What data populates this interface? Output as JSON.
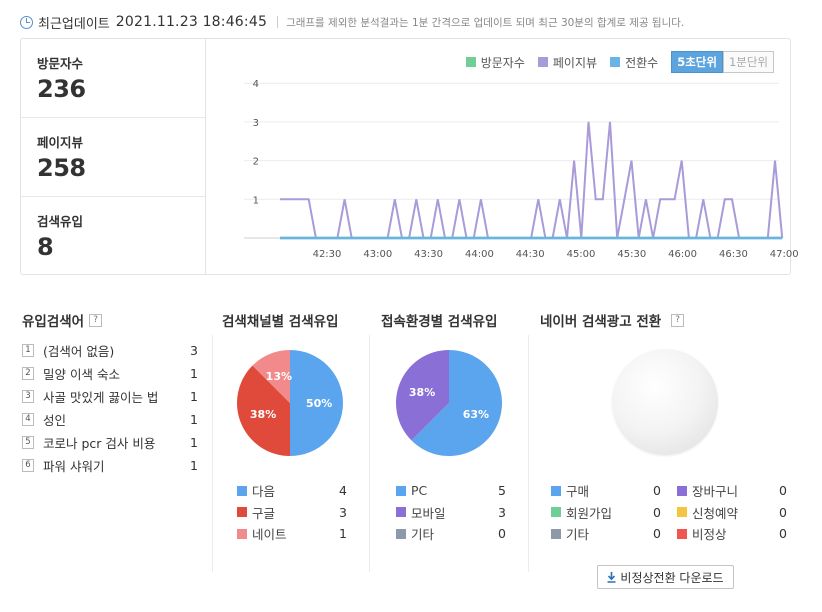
{
  "header": {
    "label": "최근업데이트",
    "datetime": "2021.11.23 18:46:45",
    "note": "그래프를 제외한 분석결과는 1분 간격으로 업데이트 되며 최근 30분의 합계로 제공 됩니다."
  },
  "stats": [
    {
      "label": "방문자수",
      "value": "236"
    },
    {
      "label": "페이지뷰",
      "value": "258"
    },
    {
      "label": "검색유입",
      "value": "8"
    }
  ],
  "legend": [
    {
      "label": "방문자수",
      "color": "#6fcf97"
    },
    {
      "label": "페이지뷰",
      "color": "#a99ad9"
    },
    {
      "label": "전환수",
      "color": "#69b3e7"
    }
  ],
  "units": {
    "active": "5초단위",
    "inactive": "1분단위"
  },
  "chart_data": {
    "type": "line",
    "x_ticks": [
      "42:30",
      "43:00",
      "43:30",
      "44:00",
      "44:30",
      "45:00",
      "45:30",
      "46:00",
      "46:30",
      "47:00"
    ],
    "y_ticks": [
      "0",
      "1",
      "2",
      "3",
      "4"
    ],
    "ylim": [
      0,
      4
    ],
    "x_range": [
      "42:20",
      "47:00"
    ],
    "grid": true,
    "series": [
      {
        "name": "페이지뷰",
        "color": "#a99ad9",
        "values": [
          1,
          1,
          1,
          1,
          1,
          0,
          0,
          0,
          0,
          1,
          0,
          0,
          0,
          0,
          0,
          0,
          1,
          0,
          0,
          1,
          0,
          0,
          1,
          0,
          0,
          1,
          0,
          0,
          1,
          0,
          0,
          0,
          0,
          0,
          0,
          0,
          1,
          0,
          0,
          1,
          0,
          2,
          0,
          3,
          1,
          1,
          3,
          0,
          1,
          2,
          0,
          1,
          0,
          1,
          1,
          1,
          2,
          0,
          0,
          1,
          0,
          0,
          1,
          1,
          0,
          0,
          0,
          0,
          0,
          2,
          0
        ]
      },
      {
        "name": "방문자수",
        "color": "#6fcf97",
        "values": [
          0,
          0,
          0,
          0,
          0,
          0,
          0,
          0,
          0,
          0,
          0,
          0,
          0,
          0,
          0,
          0,
          0,
          0,
          0,
          0,
          0,
          0,
          0,
          0,
          0,
          0,
          0,
          0,
          0,
          0,
          0,
          0,
          0,
          0,
          0,
          0,
          0,
          0,
          0,
          0,
          0,
          0,
          0,
          0,
          0,
          0,
          0,
          0,
          0,
          0,
          0,
          0,
          0,
          0,
          0,
          0,
          0,
          0,
          0,
          0,
          0,
          0,
          0,
          0,
          0,
          0,
          0,
          0,
          0,
          0,
          0
        ]
      },
      {
        "name": "전환수",
        "color": "#69b3e7",
        "values": [
          0,
          0,
          0,
          0,
          0,
          0,
          0,
          0,
          0,
          0,
          0,
          0,
          0,
          0,
          0,
          0,
          0,
          0,
          0,
          0,
          0,
          0,
          0,
          0,
          0,
          0,
          0,
          0,
          0,
          0,
          0,
          0,
          0,
          0,
          0,
          0,
          0,
          0,
          0,
          0,
          0,
          0,
          0,
          0,
          0,
          0,
          0,
          0,
          0,
          0,
          0,
          0,
          0,
          0,
          0,
          0,
          0,
          0,
          0,
          0,
          0,
          0,
          0,
          0,
          0,
          0,
          0,
          0,
          0,
          0,
          0
        ]
      }
    ]
  },
  "keywords": {
    "title": "유입검색어",
    "help": "?",
    "items": [
      {
        "rank": "1",
        "text": "(검색어 없음)",
        "count": "3"
      },
      {
        "rank": "2",
        "text": "밀양 이색 숙소",
        "count": "1"
      },
      {
        "rank": "3",
        "text": "사골 맛있게 끓이는 법",
        "count": "1"
      },
      {
        "rank": "4",
        "text": "성인",
        "count": "1"
      },
      {
        "rank": "5",
        "text": "코로나 pcr 검사 비용",
        "count": "1"
      },
      {
        "rank": "6",
        "text": "파워 샤워기",
        "count": "1"
      }
    ]
  },
  "channel": {
    "title": "검색채널별 검색유입",
    "slices": [
      {
        "label": "다음",
        "value": "4",
        "percent": 50,
        "pct_text": "50%",
        "color": "#5ba4ee"
      },
      {
        "label": "구글",
        "value": "3",
        "percent": 37.5,
        "pct_text": "38%",
        "color": "#e04a3b"
      },
      {
        "label": "네이트",
        "value": "1",
        "percent": 12.5,
        "pct_text": "13%",
        "color": "#f2898a"
      }
    ]
  },
  "env": {
    "title": "접속환경별 검색유입",
    "slices": [
      {
        "label": "PC",
        "value": "5",
        "percent": 62.5,
        "pct_text": "63%",
        "color": "#5ba4ee"
      },
      {
        "label": "모바일",
        "value": "3",
        "percent": 37.5,
        "pct_text": "38%",
        "color": "#8a6fd6"
      },
      {
        "label": "기타",
        "value": "0",
        "percent": 0,
        "pct_text": "",
        "color": "#8d99aa"
      }
    ]
  },
  "ads": {
    "title": "네이버 검색광고 전환",
    "help": "?",
    "items": [
      {
        "label": "구매",
        "value": "0",
        "color": "#5ba4ee"
      },
      {
        "label": "장바구니",
        "value": "0",
        "color": "#8a6fd6"
      },
      {
        "label": "회원가입",
        "value": "0",
        "color": "#6fcf97"
      },
      {
        "label": "신청예약",
        "value": "0",
        "color": "#f5c542"
      },
      {
        "label": "기타",
        "value": "0",
        "color": "#8d99aa"
      },
      {
        "label": "비정상",
        "value": "0",
        "color": "#f0564f"
      }
    ],
    "download_label": "비정상전환 다운로드"
  }
}
